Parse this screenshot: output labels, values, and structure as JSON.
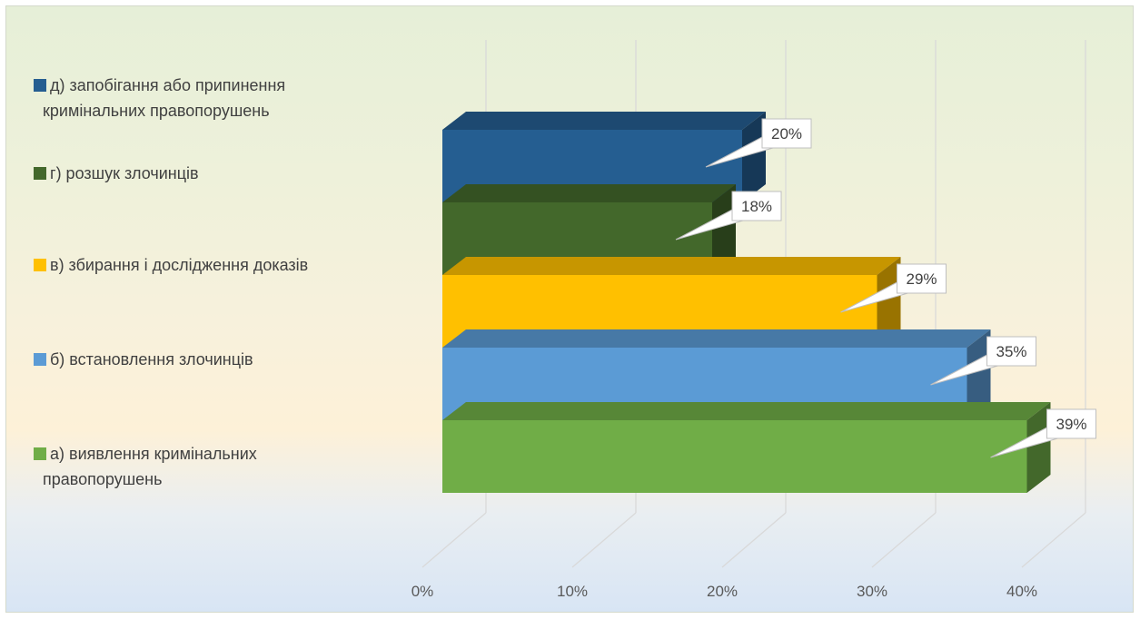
{
  "chart_data": {
    "type": "bar",
    "orientation": "horizontal",
    "style": "3d-clustered",
    "title": "",
    "xlabel": "",
    "ylabel": "",
    "xlim": [
      0,
      40
    ],
    "x_ticks": [
      "0%",
      "10%",
      "20%",
      "30%",
      "40%"
    ],
    "grid": true,
    "legend_position": "left",
    "series": [
      {
        "name": "а) виявлення кримінальних правопорушень",
        "value": 39,
        "label": "39%",
        "color": "#70ad47",
        "legend_lines": [
          "а) виявлення кримінальних",
          "правопорушень"
        ]
      },
      {
        "name": "б) встановлення злочинців",
        "value": 35,
        "label": "35%",
        "color": "#5b9bd5",
        "legend_lines": [
          "б) встановлення злочинців"
        ]
      },
      {
        "name": "в) збирання і дослідження доказів",
        "value": 29,
        "label": "29%",
        "color": "#ffc000",
        "legend_lines": [
          "в) збирання і дослідження доказів"
        ]
      },
      {
        "name": "г) розшук злочинців",
        "value": 18,
        "label": "18%",
        "color": "#43682b",
        "legend_lines": [
          "г) розшук злочинців"
        ]
      },
      {
        "name": "д) запобігання або припинення кримінальних правопорушень",
        "value": 20,
        "label": "20%",
        "color": "#255e91",
        "legend_lines": [
          "д) запобігання або припинення",
          "кримінальних правопорушень"
        ]
      }
    ]
  }
}
